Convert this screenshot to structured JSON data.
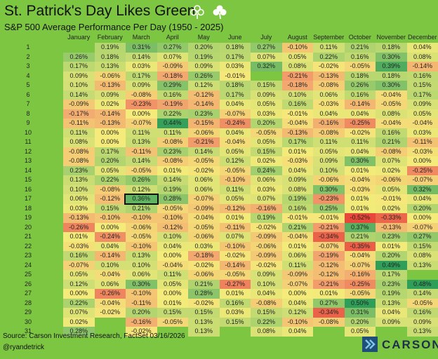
{
  "title": "St. Patrick's Day Likes Green",
  "subtitle": "S&P 500 Average Performance Per Day (1950 - 2025)",
  "footer": {
    "source": "Source: Carson Investment Research, FactSet 03/16/2026",
    "handle": "@ryandetrick",
    "logo_text": "CARSON"
  },
  "colors": {
    "background": "#7dc642",
    "positive_max": "#2e9e58",
    "neutral": "#f5eb7a",
    "negative_max": "#e8473a",
    "highlight_border": "#111111"
  },
  "icons": [
    "shamrock-outline-icon",
    "shamrock-solid-icon",
    "carson-logo-icon"
  ],
  "chart_data": {
    "type": "heatmap",
    "months": [
      "January",
      "February",
      "March",
      "April",
      "May",
      "June",
      "July",
      "August",
      "September",
      "October",
      "November",
      "December"
    ],
    "days": [
      "1",
      "2",
      "3",
      "4",
      "5",
      "6",
      "7",
      "8",
      "9",
      "10",
      "11",
      "12",
      "13",
      "14",
      "15",
      "16",
      "17",
      "18",
      "19",
      "20",
      "21",
      "22",
      "23",
      "24",
      "25",
      "26",
      "27",
      "28",
      "29",
      "30",
      "31"
    ],
    "highlight": {
      "month": "March",
      "day": "17"
    },
    "values": [
      [
        null,
        "0.19%",
        "0.31%",
        "0.27%",
        "0.20%",
        "0.18%",
        "0.27%",
        "-0.10%",
        "0.11%",
        "0.21%",
        "0.18%",
        "0.04%"
      ],
      [
        "0.26%",
        "0.18%",
        "0.14%",
        "0.07%",
        "0.19%",
        "0.17%",
        "0.07%",
        "0.05%",
        "0.22%",
        "0.16%",
        "0.30%",
        "0.08%"
      ],
      [
        "0.17%",
        "0.13%",
        "0.03%",
        "-0.09%",
        "0.09%",
        "0.03%",
        "0.32%",
        "0.08%",
        "-0.02%",
        "-0.05%",
        "0.39%",
        "-0.14%"
      ],
      [
        "0.09%",
        "-0.06%",
        "0.17%",
        "-0.18%",
        "0.26%",
        "-0.01%",
        null,
        "-0.21%",
        "-0.13%",
        "0.18%",
        "0.18%",
        "0.16%"
      ],
      [
        "0.10%",
        "-0.13%",
        "0.09%",
        "0.29%",
        "0.12%",
        "0.18%",
        "0.15%",
        "-0.18%",
        "-0.08%",
        "0.26%",
        "0.30%",
        "0.15%"
      ],
      [
        "0.14%",
        "0.09%",
        "-0.08%",
        "0.16%",
        "-0.12%",
        "0.17%",
        "0.09%",
        "0.10%",
        "0.06%",
        "0.16%",
        "-0.04%",
        "0.17%"
      ],
      [
        "-0.09%",
        "0.02%",
        "-0.23%",
        "-0.19%",
        "-0.14%",
        "0.04%",
        "0.05%",
        "0.16%",
        "-0.03%",
        "-0.14%",
        "-0.05%",
        "0.09%"
      ],
      [
        "-0.17%",
        "-0.14%",
        "0.00%",
        "0.22%",
        "0.23%",
        "-0.07%",
        "0.03%",
        "-0.01%",
        "0.04%",
        "0.04%",
        "0.08%",
        "0.05%"
      ],
      [
        "-0.11%",
        "-0.13%",
        "-0.07%",
        "0.44%",
        "-0.15%",
        "-0.24%",
        "0.20%",
        "-0.04%",
        "-0.16%",
        "-0.25%",
        "-0.04%",
        "-0.04%"
      ],
      [
        "0.11%",
        "0.00%",
        "0.11%",
        "0.11%",
        "-0.06%",
        "0.04%",
        "-0.05%",
        "-0.13%",
        "-0.08%",
        "-0.02%",
        "0.16%",
        "0.03%"
      ],
      [
        "0.08%",
        "0.00%",
        "0.13%",
        "-0.08%",
        "-0.21%",
        "-0.04%",
        "0.05%",
        "0.17%",
        "0.11%",
        "0.11%",
        "0.21%",
        "-0.11%"
      ],
      [
        "-0.08%",
        "0.17%",
        "-0.11%",
        "0.23%",
        "0.14%",
        "0.05%",
        "0.15%",
        "0.01%",
        "0.05%",
        "0.04%",
        "-0.08%",
        "-0.03%"
      ],
      [
        "-0.08%",
        "0.20%",
        "0.14%",
        "-0.08%",
        "-0.05%",
        "0.12%",
        "0.02%",
        "-0.03%",
        "0.09%",
        "0.30%",
        "0.07%",
        "0.00%"
      ],
      [
        "0.23%",
        "0.05%",
        "-0.05%",
        "0.01%",
        "-0.02%",
        "-0.05%",
        "0.24%",
        "0.04%",
        "0.10%",
        "0.01%",
        "0.02%",
        "-0.25%"
      ],
      [
        "0.13%",
        "0.22%",
        "0.26%",
        "0.14%",
        "0.06%",
        "-0.10%",
        "0.06%",
        "0.09%",
        "-0.06%",
        "-0.04%",
        "-0.06%",
        "-0.07%"
      ],
      [
        "0.10%",
        "-0.08%",
        "0.12%",
        "0.19%",
        "0.06%",
        "0.11%",
        "0.03%",
        "0.08%",
        "0.30%",
        "-0.03%",
        "0.05%",
        "0.32%"
      ],
      [
        "0.06%",
        "-0.12%",
        "0.36%",
        "0.28%",
        "-0.07%",
        "0.05%",
        "0.07%",
        "0.19%",
        "-0.23%",
        "0.01%",
        "-0.01%",
        "0.04%"
      ],
      [
        "0.03%",
        "0.15%",
        "0.21%",
        "-0.05%",
        "-0.09%",
        "-0.12%",
        "-0.16%",
        "0.16%",
        "0.25%",
        "0.01%",
        "0.02%",
        "0.20%"
      ],
      [
        "-0.13%",
        "-0.10%",
        "-0.10%",
        "-0.10%",
        "-0.04%",
        "0.01%",
        "0.19%",
        "-0.01%",
        "-0.01%",
        "-0.52%",
        "-0.33%",
        "0.00%"
      ],
      [
        "-0.26%",
        "0.00%",
        "-0.06%",
        "-0.12%",
        "-0.05%",
        "-0.11%",
        "-0.02%",
        "0.21%",
        "-0.21%",
        "0.37%",
        "-0.13%",
        "-0.07%"
      ],
      [
        "0.01%",
        "-0.24%",
        "-0.05%",
        "0.10%",
        "-0.06%",
        "0.07%",
        "-0.09%",
        "-0.04%",
        "-0.34%",
        "0.21%",
        "0.23%",
        "0.27%"
      ],
      [
        "-0.03%",
        "0.04%",
        "-0.10%",
        "0.04%",
        "0.03%",
        "-0.10%",
        "-0.06%",
        "0.01%",
        "-0.07%",
        "-0.35%",
        "0.01%",
        "0.15%"
      ],
      [
        "0.16%",
        "-0.14%",
        "0.13%",
        "0.00%",
        "-0.18%",
        "-0.02%",
        "-0.09%",
        "0.06%",
        "-0.19%",
        "-0.04%",
        "0.20%",
        "0.08%"
      ],
      [
        "-0.07%",
        "0.10%",
        "0.10%",
        "-0.04%",
        "-0.02%",
        "-0.14%",
        "-0.02%",
        "0.11%",
        "-0.12%",
        "-0.07%",
        "0.49%",
        "0.13%"
      ],
      [
        "0.05%",
        "-0.04%",
        "0.06%",
        "0.11%",
        "-0.06%",
        "-0.05%",
        "0.09%",
        "-0.09%",
        "-0.12%",
        "-0.16%",
        "0.17%",
        null
      ],
      [
        "0.12%",
        "0.06%",
        "0.30%",
        "0.05%",
        "0.21%",
        "-0.27%",
        "0.10%",
        "-0.07%",
        "-0.21%",
        "-0.25%",
        "0.23%",
        "0.48%"
      ],
      [
        "0.00%",
        "-0.26%",
        "-0.10%",
        "0.00%",
        "0.28%",
        "0.01%",
        "0.04%",
        "0.00%",
        "0.01%",
        "-0.05%",
        "0.19%",
        "0.14%"
      ],
      [
        "0.22%",
        "-0.04%",
        "-0.11%",
        "0.01%",
        "-0.02%",
        "0.16%",
        "-0.08%",
        "0.04%",
        "0.27%",
        "0.50%",
        "0.13%",
        "-0.05%"
      ],
      [
        "0.07%",
        "-0.02%",
        "0.20%",
        "0.15%",
        "0.15%",
        "0.03%",
        "0.15%",
        "0.12%",
        "-0.34%",
        "0.31%",
        "0.04%",
        "0.16%"
      ],
      [
        "0.02%",
        null,
        "-0.16%",
        "-0.05%",
        "0.13%",
        "0.15%",
        "0.22%",
        "-0.10%",
        "-0.08%",
        "0.20%",
        "0.09%",
        "0.09%"
      ],
      [
        "0.28%",
        null,
        "-0.02%",
        null,
        "0.13%",
        null,
        "0.08%",
        "0.04%",
        null,
        "0.05%",
        null,
        "0.13%"
      ]
    ]
  }
}
